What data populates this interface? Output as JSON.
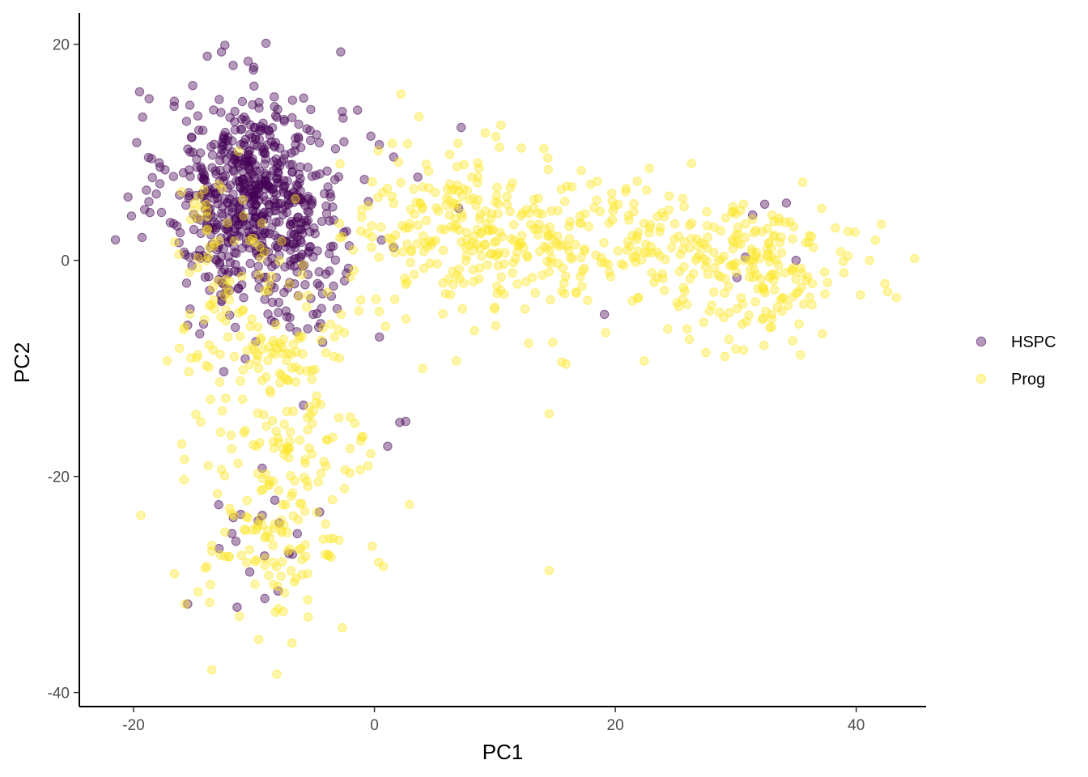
{
  "chart_data": {
    "type": "scatter",
    "title": "",
    "xlabel": "PC1",
    "ylabel": "PC2",
    "xlim": [
      -24.5,
      45.8
    ],
    "ylim": [
      -41.3,
      22.9
    ],
    "xticks": [
      -20,
      0,
      20,
      40
    ],
    "yticks": [
      -40,
      -20,
      0,
      20
    ],
    "xtick_labels": [
      "-20",
      "0",
      "20",
      "40"
    ],
    "ytick_labels": [
      "-40",
      "-20",
      "0",
      "20"
    ],
    "grid": false,
    "legend": {
      "placement": "right"
    },
    "series": [
      {
        "name": "HSPC",
        "color": "#440154",
        "opacity": 0.4,
        "clusters": [
          {
            "center": [
              -10,
              6
            ],
            "spread": [
              3.6,
              4.6
            ],
            "n": 640
          },
          {
            "center": [
              -7,
              -4
            ],
            "spread": [
              3.2,
              2.6
            ],
            "n": 40
          },
          {
            "center": [
              -8,
              -24
            ],
            "spread": [
              3.0,
              3.0
            ],
            "n": 12
          }
        ],
        "points": [
          [
            -21.5,
            1.9
          ],
          [
            -19.5,
            15.6
          ],
          [
            -15.5,
            -31.8
          ],
          [
            -11.4,
            -32.1
          ],
          [
            -9.0,
            20.1
          ],
          [
            -12.7,
            19.3
          ],
          [
            -2.8,
            19.3
          ],
          [
            -1.4,
            13.9
          ],
          [
            -0.3,
            11.5
          ],
          [
            7.2,
            12.3
          ],
          [
            3.6,
            7.7
          ],
          [
            7.0,
            4.8
          ],
          [
            19.1,
            -5.0
          ],
          [
            32.4,
            5.2
          ],
          [
            34.2,
            5.3
          ],
          [
            31.4,
            4.2
          ],
          [
            30.8,
            0.3
          ],
          [
            35.0,
            0.0
          ],
          [
            30.1,
            -1.6
          ],
          [
            1.6,
            1.2
          ],
          [
            2.1,
            -15.0
          ],
          [
            2.6,
            -14.9
          ],
          [
            -5.9,
            -13.4
          ],
          [
            -11.5,
            -26.0
          ],
          [
            -11.1,
            -23.5
          ],
          [
            -7.9,
            -24.3
          ],
          [
            -6.4,
            -25.3
          ],
          [
            -6.8,
            -27.2
          ],
          [
            -8.0,
            -30.6
          ],
          [
            -9.1,
            -31.3
          ],
          [
            1.1,
            -17.2
          ],
          [
            -12.5,
            -10.3
          ],
          [
            -14.5,
            -6.8
          ],
          [
            -15.5,
            -6.0
          ],
          [
            -4.3,
            -7.6
          ]
        ]
      },
      {
        "name": "Prog",
        "color": "#fde725",
        "opacity": 0.4,
        "clusters": [
          {
            "center": [
              -9,
              -7
            ],
            "spread": [
              3.5,
              3.2
            ],
            "n": 120
          },
          {
            "center": [
              -7,
              -17
            ],
            "spread": [
              3.8,
              2.4
            ],
            "n": 70
          },
          {
            "center": [
              -8,
              -26
            ],
            "spread": [
              3.0,
              3.5
            ],
            "n": 110
          },
          {
            "center": [
              -13,
              3
            ],
            "spread": [
              2.5,
              3.0
            ],
            "n": 40
          },
          {
            "center": [
              6,
              3
            ],
            "spread": [
              4.0,
              3.5
            ],
            "n": 170
          },
          {
            "center": [
              15,
              2
            ],
            "spread": [
              4.5,
              3.2
            ],
            "n": 130
          },
          {
            "center": [
              24,
              1
            ],
            "spread": [
              3.5,
              2.4
            ],
            "n": 70
          },
          {
            "center": [
              32,
              -1
            ],
            "spread": [
              4.2,
              3.0
            ],
            "n": 170
          }
        ],
        "points": [
          [
            2.2,
            15.4
          ],
          [
            3.7,
            13.3
          ],
          [
            10.5,
            12.5
          ],
          [
            9.2,
            11.8
          ],
          [
            4.3,
            8.9
          ],
          [
            7.9,
            5.6
          ],
          [
            12.2,
            10.4
          ],
          [
            18.5,
            7.3
          ],
          [
            22.6,
            6.5
          ],
          [
            42.6,
            -2.9
          ],
          [
            41.1,
            0.0
          ],
          [
            39.9,
            2.6
          ],
          [
            38.7,
            0.8
          ],
          [
            -19.4,
            -23.6
          ],
          [
            -16.6,
            -29.0
          ],
          [
            -15.7,
            -31.8
          ],
          [
            -13.5,
            -37.9
          ],
          [
            -8.1,
            -38.3
          ],
          [
            -9.6,
            -35.1
          ],
          [
            -5.5,
            -33.0
          ],
          [
            14.5,
            -28.7
          ],
          [
            14.5,
            -14.2
          ],
          [
            2.9,
            -22.6
          ],
          [
            -0.3,
            -17.9
          ],
          [
            -17.2,
            -9.3
          ],
          [
            -15.8,
            -20.3
          ],
          [
            -16.0,
            -17.0
          ],
          [
            -13.8,
            -19.0
          ],
          [
            4.0,
            -10.0
          ],
          [
            6.8,
            -9.3
          ],
          [
            14.8,
            -7.6
          ],
          [
            15.9,
            -9.6
          ],
          [
            22.4,
            -9.3
          ],
          [
            19.2,
            -6.7
          ],
          [
            17.7,
            -3.7
          ],
          [
            11.0,
            5.9
          ],
          [
            16.4,
            6.8
          ],
          [
            21.9,
            2.6
          ],
          [
            25.7,
            -0.6
          ],
          [
            29.4,
            -2.4
          ],
          [
            30.0,
            4.3
          ],
          [
            33.6,
            3.6
          ],
          [
            36.1,
            2.3
          ],
          [
            37.4,
            -3.1
          ],
          [
            30.0,
            -8.2
          ],
          [
            29.1,
            -8.9
          ],
          [
            25.6,
            -3.6
          ],
          [
            33.0,
            -5.0
          ],
          [
            35.2,
            -2.9
          ],
          [
            27.6,
            4.5
          ],
          [
            9.8,
            2.9
          ],
          [
            12.5,
            -4.5
          ],
          [
            8.6,
            7.7
          ],
          [
            5.7,
            -2.1
          ],
          [
            13.1,
            -1.6
          ],
          [
            2.0,
            9.1
          ],
          [
            0.7,
            6.3
          ],
          [
            -0.6,
            2.5
          ],
          [
            1.7,
            -3.6
          ],
          [
            -1.7,
            -0.9
          ]
        ]
      }
    ]
  }
}
